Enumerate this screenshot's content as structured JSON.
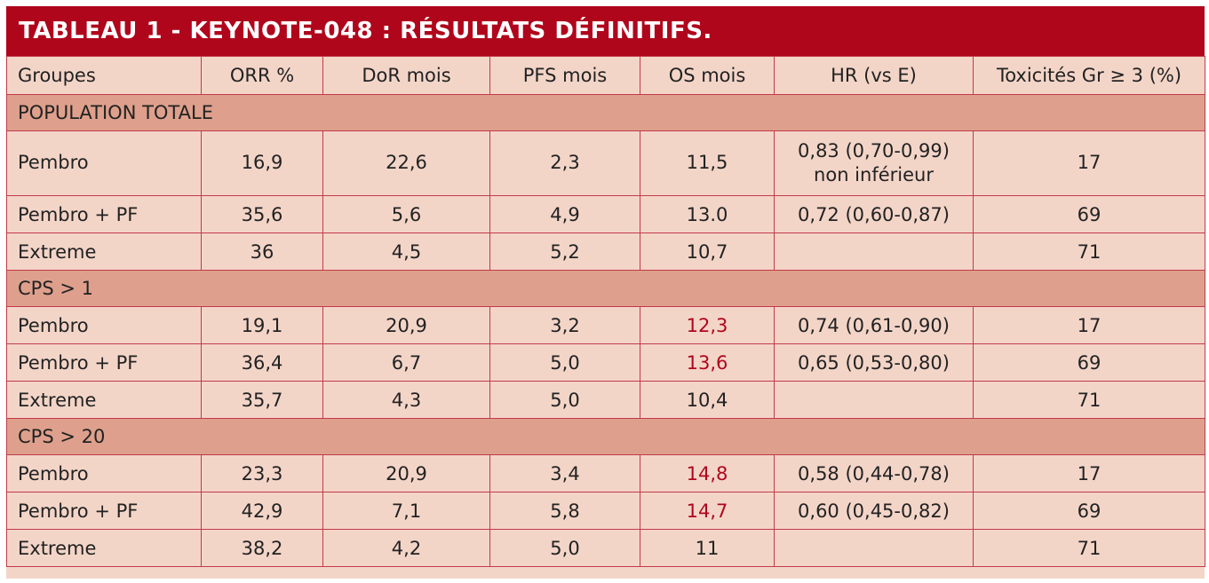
{
  "title": "TABLEAU 1 - KEYNOTE-048 : RÉSULTATS DÉFINITIFS.",
  "headers": [
    "Groupes",
    "ORR %",
    "DoR mois",
    "PFS mois",
    "OS mois",
    "HR (vs E)",
    "Toxicités Gr ≥ 3 (%)"
  ],
  "sections": [
    {
      "label": "POPULATION TOTALE",
      "rows": [
        {
          "group": "Pembro",
          "orr": "16,9",
          "dor": "22,6",
          "pfs": "2,3",
          "os": "11,5",
          "hr_line1": "0,83 (0,70-0,99)",
          "hr_line2": "non inférieur",
          "tox": "17"
        },
        {
          "group": "Pembro + PF",
          "orr": "35,6",
          "dor": "5,6",
          "pfs": "4,9",
          "os": "13.0",
          "hr_line1": "0,72 (0,60-0,87)",
          "hr_line2": "",
          "tox": "69"
        },
        {
          "group": "Extreme",
          "orr": "36",
          "dor": "4,5",
          "pfs": "5,2",
          "os": "10,7",
          "hr_line1": "",
          "hr_line2": "",
          "tox": "71"
        }
      ]
    },
    {
      "label": "CPS > 1",
      "rows": [
        {
          "group": "Pembro",
          "orr": "19,1",
          "dor": "20,9",
          "pfs": "3,2",
          "os": "12,3",
          "hr_line1": "0,74 (0,61-0,90)",
          "hr_line2": "",
          "tox": "17"
        },
        {
          "group": "Pembro + PF",
          "orr": "36,4",
          "dor": "6,7",
          "pfs": "5,0",
          "os": "13,6",
          "hr_line1": "0,65 (0,53-0,80)",
          "hr_line2": "",
          "tox": "69"
        },
        {
          "group": "Extreme",
          "orr": "35,7",
          "dor": "4,3",
          "pfs": "5,0",
          "os": "10,4",
          "hr_line1": "",
          "hr_line2": "",
          "tox": "71"
        }
      ]
    },
    {
      "label": "CPS > 20",
      "rows": [
        {
          "group": "Pembro",
          "orr": "23,3",
          "dor": "20,9",
          "pfs": "3,4",
          "os": "14,8",
          "hr_line1": "0,58 (0,44-0,78)",
          "hr_line2": "",
          "tox": "17"
        },
        {
          "group": "Pembro + PF",
          "orr": "42,9",
          "dor": "7,1",
          "pfs": "5,8",
          "os": "14,7",
          "hr_line1": "0,60 (0,45-0,82)",
          "hr_line2": "",
          "tox": "69"
        },
        {
          "group": "Extreme",
          "orr": "38,2",
          "dor": "4,2",
          "pfs": "5,0",
          "os": "11",
          "hr_line1": "",
          "hr_line2": "",
          "tox": "71"
        }
      ]
    }
  ],
  "colors": {
    "title_bg": "#b0061c",
    "cell_bg": "#f3d5c8",
    "section_bg": "#dea08c",
    "border": "#c23a4a",
    "highlight_text": "#b0061c"
  }
}
